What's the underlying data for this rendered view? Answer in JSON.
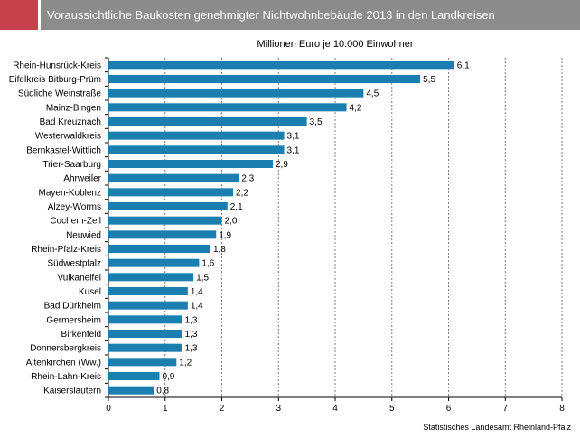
{
  "header": {
    "title": "Voraussichtliche Baukosten genehmigter Nichtwohnbebäude 2013 in den Landkreisen"
  },
  "source": "Statistisches Landesamt Rheinland-Pfalz",
  "colors": {
    "bar": "#1a7fae",
    "accent": "#c7414d",
    "header": "#8c8c8c",
    "grid": "#7f7f7f"
  },
  "chart_data": {
    "type": "bar",
    "orientation": "horizontal",
    "title": "Millionen Euro je 10.000 Einwohner",
    "xlim": [
      0,
      8
    ],
    "xticks": [
      "0",
      "1",
      "2",
      "3",
      "4",
      "5",
      "6",
      "7",
      "8"
    ],
    "grid": true,
    "categories": [
      "Rhein-Hunsrück-Kreis",
      "Eifelkreis Bitburg-Prüm",
      "Südliche Weinstraße",
      "Mainz-Bingen",
      "Bad Kreuznach",
      "Westerwaldkreis",
      "Bernkastel-Wittlich",
      "Trier-Saarburg",
      "Ahrweiler",
      "Mayen-Koblenz",
      "Alzey-Worms",
      "Cochem-Zell",
      "Neuwied",
      "Rhein-Pfalz-Kreis",
      "Südwestpfalz",
      "Vulkaneifel",
      "Kusel",
      "Bad Dürkheim",
      "Germersheim",
      "Birkenfeld",
      "Donnersbergkreis",
      "Altenkirchen (Ww.)",
      "Rhein-Lahn-Kreis",
      "Kaiserslautern"
    ],
    "values": [
      6.1,
      5.5,
      4.5,
      4.2,
      3.5,
      3.1,
      3.1,
      2.9,
      2.3,
      2.2,
      2.1,
      2.0,
      1.9,
      1.8,
      1.6,
      1.5,
      1.4,
      1.4,
      1.3,
      1.3,
      1.3,
      1.2,
      0.9,
      0.8
    ],
    "labels": [
      "6,1",
      "5,5",
      "4,5",
      "4,2",
      "3,5",
      "3,1",
      "3,1",
      "2,9",
      "2,3",
      "2,2",
      "2,1",
      "2,0",
      "1,9",
      "1,8",
      "1,6",
      "1,5",
      "1,4",
      "1,4",
      "1,3",
      "1,3",
      "1,3",
      "1,2",
      "0,9",
      "0,8"
    ]
  }
}
